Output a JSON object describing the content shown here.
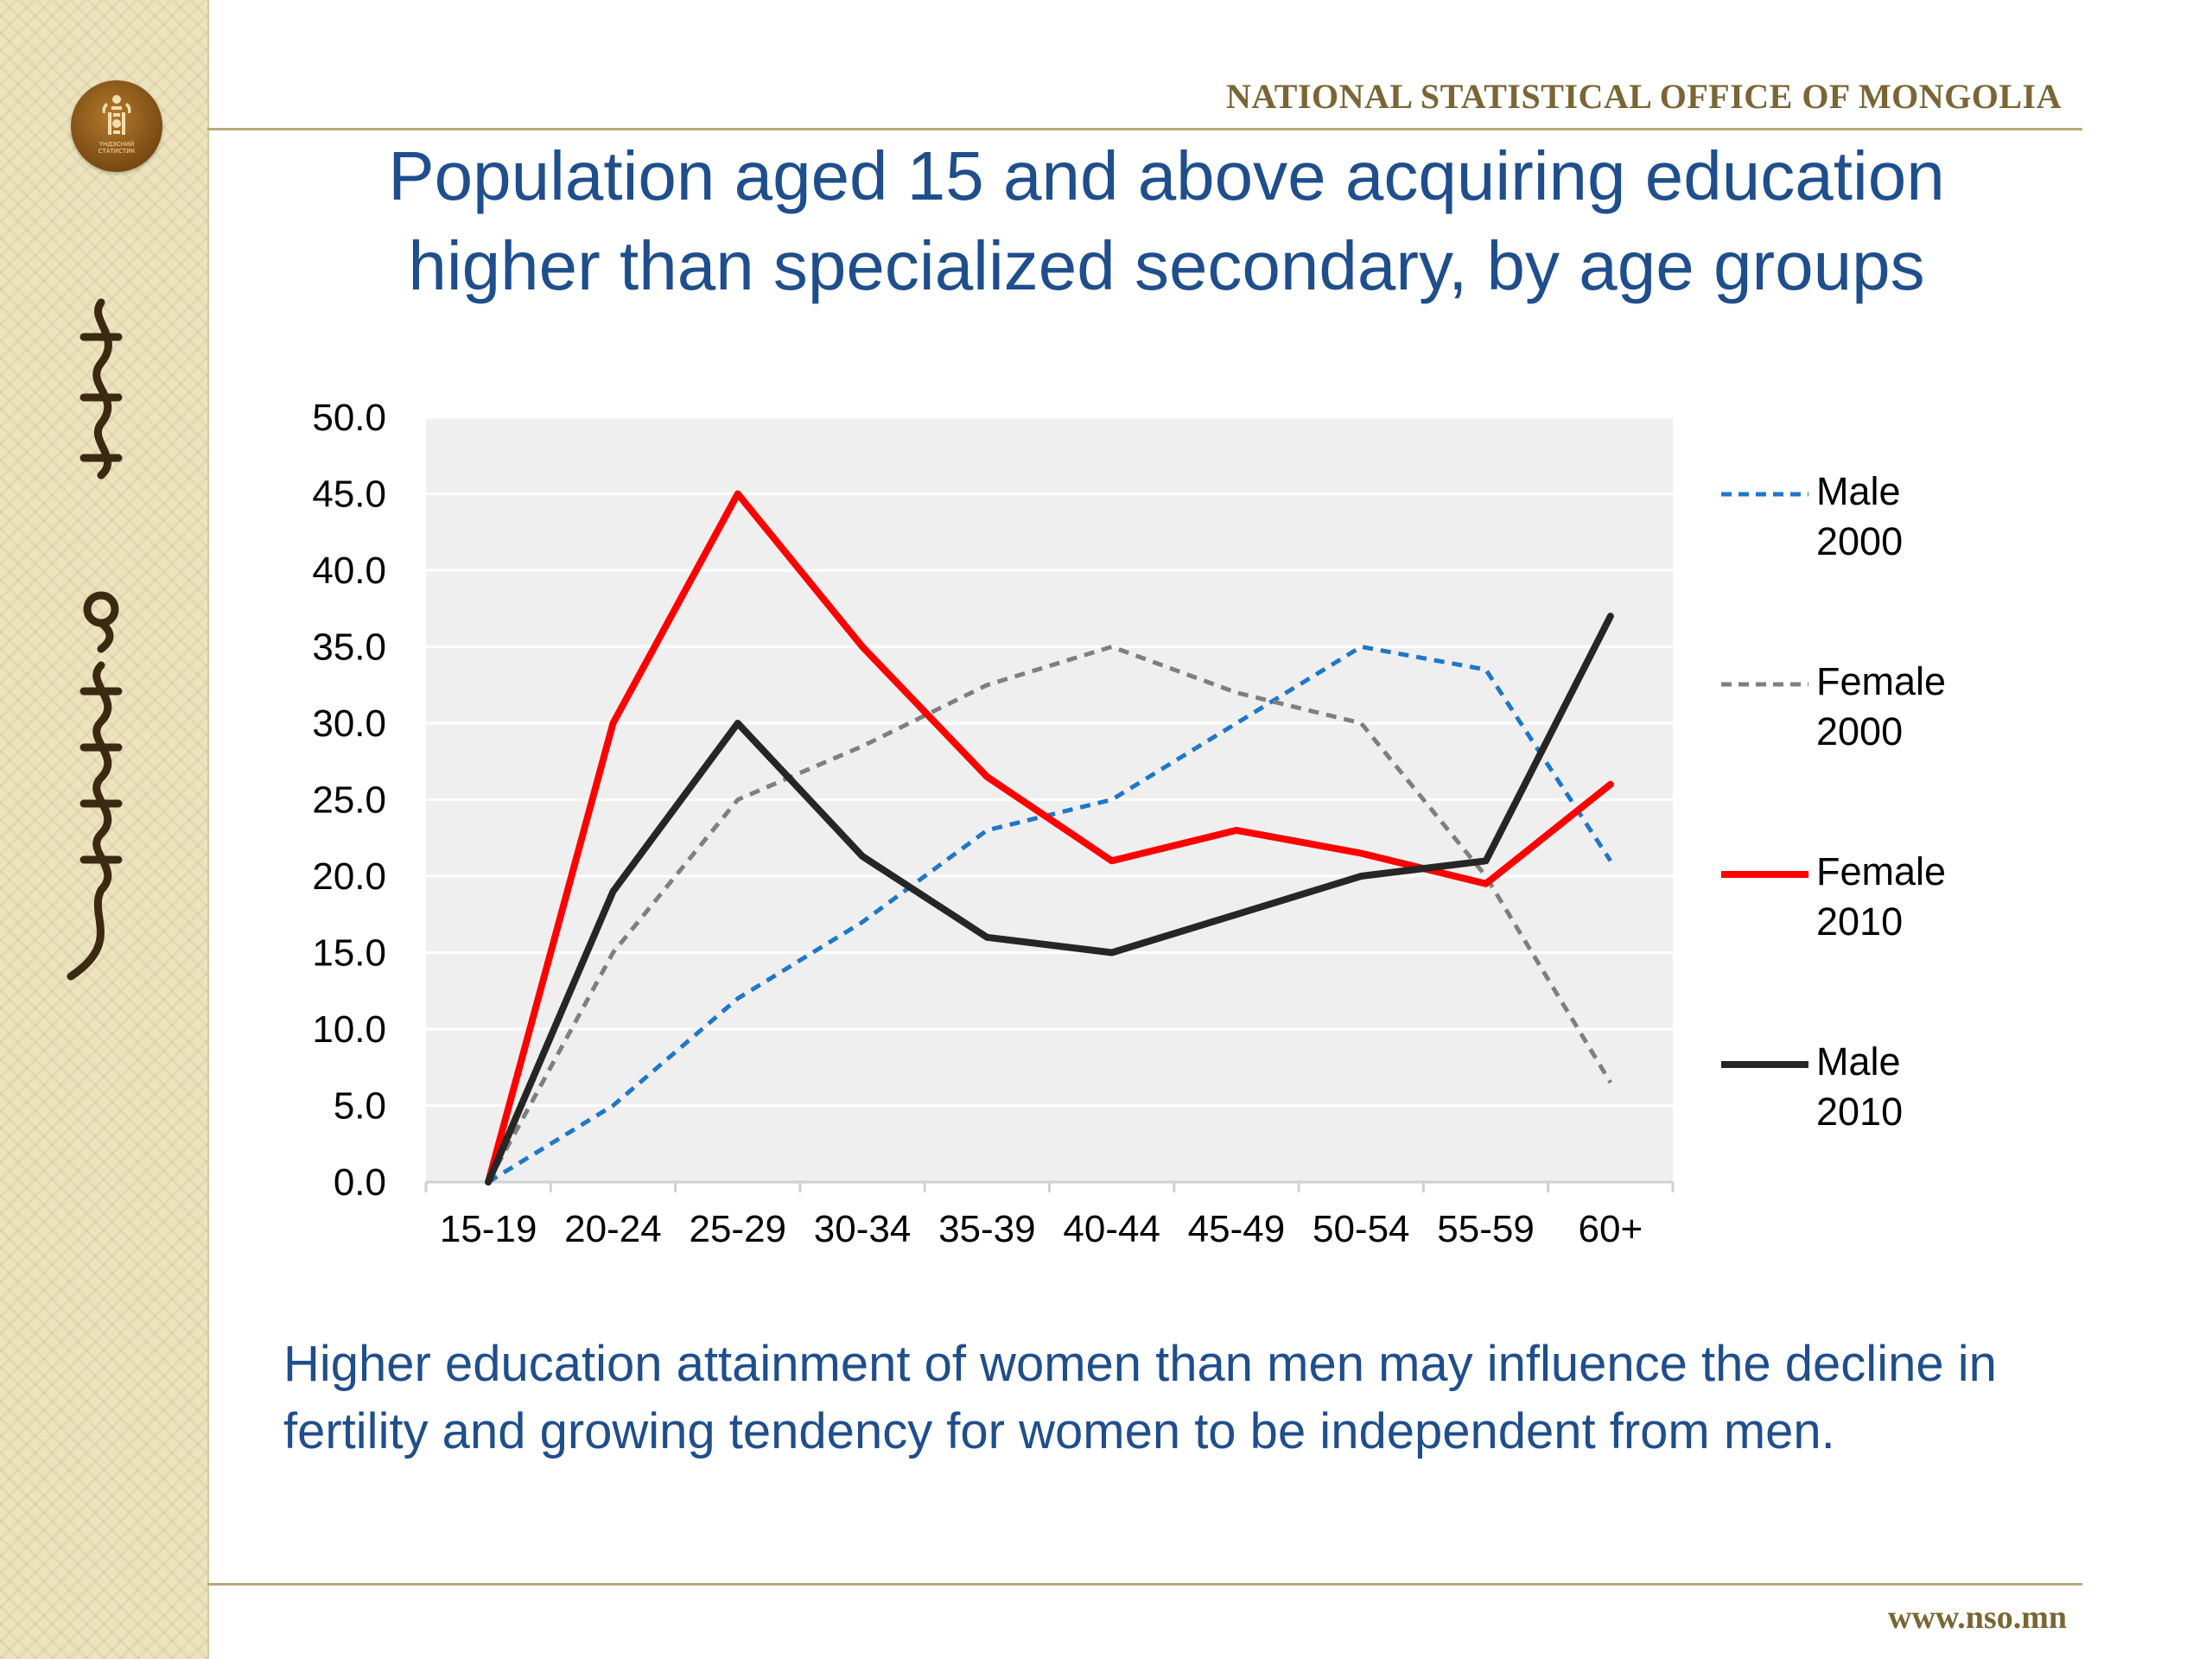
{
  "header": {
    "org_name": "NATIONAL STATISTICAL OFFICE OF MONGOLIA",
    "title_line1": "Population aged 15 and above acquiring education",
    "title_line2": "higher than specialized secondary, by age groups"
  },
  "sidebar": {
    "emblem_caption_line1": "ҮНДЭСНИЙ",
    "emblem_caption_line2": "СТАТИСТИК"
  },
  "chart_data": {
    "type": "line",
    "title": "",
    "xlabel": "",
    "ylabel": "",
    "categories": [
      "15-19",
      "20-24",
      "25-29",
      "30-34",
      "35-39",
      "40-44",
      "45-49",
      "50-54",
      "55-59",
      "60+"
    ],
    "ylim": [
      0,
      50
    ],
    "yticks": [
      "0.0",
      "5.0",
      "10.0",
      "15.0",
      "20.0",
      "25.0",
      "30.0",
      "35.0",
      "40.0",
      "45.0",
      "50.0"
    ],
    "grid": "horizontal",
    "legend": "right",
    "series": [
      {
        "name_line1": "Male",
        "name_line2": "2000",
        "color": "#1f77c8",
        "style": "dashed",
        "values": [
          0,
          5,
          12,
          17,
          23,
          25,
          30,
          35,
          33.5,
          21
        ]
      },
      {
        "name_line1": "Female",
        "name_line2": "2000",
        "color": "#7f7f7f",
        "style": "dashed",
        "values": [
          0,
          15,
          25,
          28.5,
          32.5,
          35,
          32,
          30,
          20,
          6.5
        ]
      },
      {
        "name_line1": "Female",
        "name_line2": "2010",
        "color": "#ff0000",
        "style": "solid",
        "values": [
          0,
          30,
          45,
          35,
          26.5,
          21,
          23,
          21.5,
          19.5,
          26
        ]
      },
      {
        "name_line1": "Male",
        "name_line2": "2010",
        "color": "#262626",
        "style": "solid",
        "values": [
          0,
          19,
          30,
          21.3,
          16,
          15,
          17.5,
          20,
          21,
          37
        ]
      }
    ]
  },
  "footnote": "Higher education attainment of women than men may influence the decline in fertility and growing tendency for women to be independent from men.",
  "footer": {
    "url": "www.nso.mn"
  }
}
